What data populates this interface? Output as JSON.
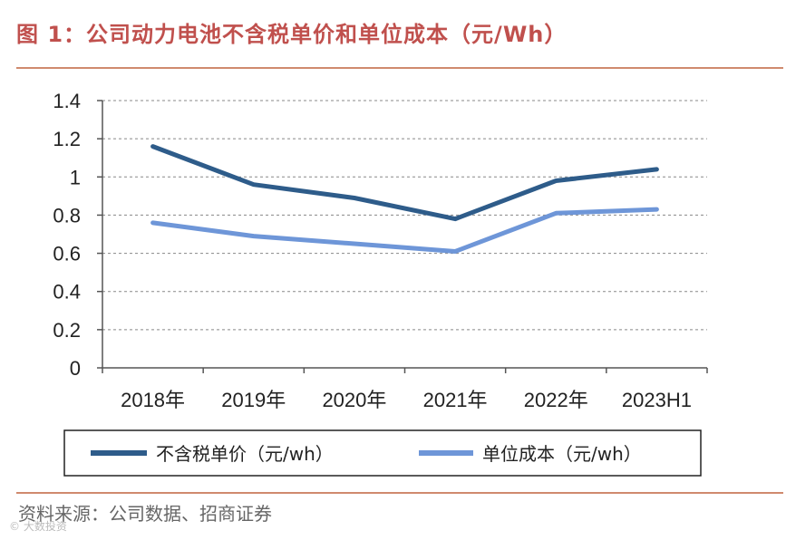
{
  "figure": {
    "title": "图 1：公司动力电池不含税单价和单位成本（元/Wh）",
    "source": "资料来源：公司数据、招商证券",
    "watermark": "© 大数投资"
  },
  "colors": {
    "title": "#C0504D",
    "rule": "#D08A6E",
    "series1": "#2E5C8A",
    "series2": "#6E96D8",
    "grid": "#888888",
    "axis": "#555555"
  },
  "chart_data": {
    "type": "line",
    "title": "",
    "xlabel": "",
    "ylabel": "",
    "categories": [
      "2018年",
      "2019年",
      "2020年",
      "2021年",
      "2022年",
      "2023H1"
    ],
    "series": [
      {
        "name": "不含税单价（元/wh）",
        "values": [
          1.16,
          0.96,
          0.89,
          0.78,
          0.98,
          1.04
        ]
      },
      {
        "name": "单位成本（元/wh）",
        "values": [
          0.76,
          0.69,
          0.65,
          0.61,
          0.81,
          0.83
        ]
      }
    ],
    "ylim": [
      0,
      1.4
    ],
    "yticks": [
      0,
      0.2,
      0.4,
      0.6,
      0.8,
      1,
      1.2,
      1.4
    ],
    "ytick_labels": [
      "0",
      "0.2",
      "0.4",
      "0.6",
      "0.8",
      "1",
      "1.2",
      "1.4"
    ],
    "grid": "horizontal-dashed",
    "legend_position": "bottom"
  }
}
